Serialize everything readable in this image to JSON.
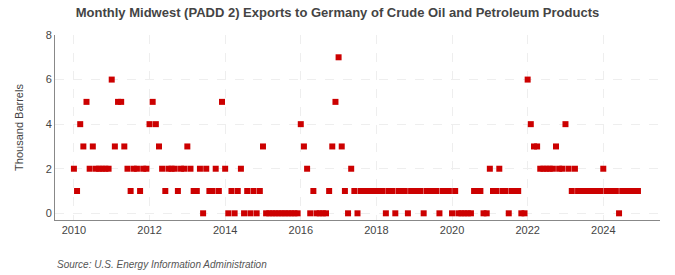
{
  "chart_data": {
    "type": "scatter",
    "title": "Monthly Midwest (PADD 2) Exports to Germany of Crude Oil and Petroleum Products",
    "ylabel": "Thousand Barrels",
    "annotations": [
      "Source: U.S. Energy Information Administration"
    ],
    "color": "#CC0000",
    "marker": "square",
    "grid": true,
    "xlim": [
      2009.5,
      2025.5
    ],
    "ylim": [
      -0.3,
      8
    ],
    "xticks": [
      2010,
      2012,
      2014,
      2016,
      2018,
      2020,
      2022,
      2024
    ],
    "yticks": [
      0,
      2,
      4,
      6,
      8
    ],
    "x": [
      2010.0,
      2010.083,
      2010.167,
      2010.25,
      2010.333,
      2010.417,
      2010.5,
      2010.583,
      2010.667,
      2010.75,
      2010.833,
      2010.917,
      2011.0,
      2011.083,
      2011.167,
      2011.25,
      2011.333,
      2011.417,
      2011.5,
      2011.583,
      2011.667,
      2011.75,
      2011.833,
      2011.917,
      2012.0,
      2012.083,
      2012.167,
      2012.25,
      2012.333,
      2012.417,
      2012.5,
      2012.583,
      2012.667,
      2012.75,
      2012.833,
      2012.917,
      2013.0,
      2013.083,
      2013.167,
      2013.25,
      2013.333,
      2013.417,
      2013.5,
      2013.583,
      2013.667,
      2013.75,
      2013.833,
      2013.917,
      2014.0,
      2014.083,
      2014.167,
      2014.25,
      2014.333,
      2014.417,
      2014.5,
      2014.583,
      2014.667,
      2014.75,
      2014.833,
      2014.917,
      2015.0,
      2015.083,
      2015.167,
      2015.25,
      2015.333,
      2015.417,
      2015.5,
      2015.583,
      2015.667,
      2015.75,
      2015.833,
      2015.917,
      2016.0,
      2016.083,
      2016.167,
      2016.25,
      2016.333,
      2016.417,
      2016.5,
      2016.583,
      2016.667,
      2016.75,
      2016.833,
      2016.917,
      2017.0,
      2017.083,
      2017.167,
      2017.25,
      2017.333,
      2017.417,
      2017.5,
      2017.583,
      2017.667,
      2017.75,
      2017.833,
      2017.917,
      2018.0,
      2018.083,
      2018.167,
      2018.25,
      2018.333,
      2018.417,
      2018.5,
      2018.583,
      2018.667,
      2018.75,
      2018.833,
      2018.917,
      2019.0,
      2019.083,
      2019.167,
      2019.25,
      2019.333,
      2019.417,
      2019.5,
      2019.583,
      2019.667,
      2019.75,
      2019.833,
      2019.917,
      2020.0,
      2020.083,
      2020.167,
      2020.25,
      2020.333,
      2020.417,
      2020.5,
      2020.583,
      2020.667,
      2020.75,
      2020.833,
      2020.917,
      2021.0,
      2021.083,
      2021.167,
      2021.25,
      2021.333,
      2021.417,
      2021.5,
      2021.583,
      2021.667,
      2021.75,
      2021.833,
      2021.917,
      2022.0,
      2022.083,
      2022.167,
      2022.25,
      2022.333,
      2022.417,
      2022.5,
      2022.583,
      2022.667,
      2022.75,
      2022.833,
      2022.917,
      2023.0,
      2023.083,
      2023.167,
      2023.25,
      2023.333,
      2023.417,
      2023.5,
      2023.583,
      2023.667,
      2023.75,
      2023.833,
      2023.917,
      2024.0,
      2024.083,
      2024.167,
      2024.25,
      2024.333,
      2024.417,
      2024.5,
      2024.583,
      2024.667,
      2024.75,
      2024.833,
      2024.917
    ],
    "values": [
      2,
      1,
      4,
      3,
      5,
      2,
      3,
      2,
      2,
      2,
      2,
      2,
      6,
      3,
      5,
      5,
      3,
      2,
      1,
      2,
      2,
      1,
      2,
      2,
      4,
      5,
      4,
      3,
      2,
      1,
      2,
      2,
      2,
      1,
      2,
      2,
      3,
      2,
      1,
      1,
      2,
      0,
      2,
      1,
      1,
      2,
      1,
      5,
      2,
      0,
      1,
      0,
      1,
      2,
      0,
      1,
      0,
      1,
      0,
      1,
      3,
      0,
      0,
      0,
      0,
      0,
      0,
      0,
      0,
      0,
      0,
      0,
      4,
      3,
      2,
      0,
      1,
      0,
      0,
      0,
      0,
      1,
      3,
      5,
      7,
      3,
      1,
      0,
      2,
      1,
      0,
      1,
      1,
      1,
      1,
      1,
      1,
      1,
      1,
      0,
      1,
      1,
      0,
      1,
      1,
      1,
      0,
      1,
      1,
      1,
      1,
      0,
      1,
      1,
      1,
      1,
      0,
      1,
      1,
      1,
      0,
      1,
      0,
      0,
      0,
      0,
      0,
      1,
      1,
      1,
      0,
      0,
      2,
      1,
      1,
      2,
      1,
      1,
      0,
      1,
      1,
      1,
      0,
      0,
      6,
      4,
      3,
      3,
      2,
      2,
      2,
      2,
      2,
      3,
      2,
      2,
      4,
      2,
      1,
      2,
      1,
      1,
      1,
      1,
      1,
      1,
      1,
      1,
      2,
      1,
      1,
      1,
      1,
      0,
      1,
      1,
      1,
      1,
      1,
      1
    ]
  }
}
